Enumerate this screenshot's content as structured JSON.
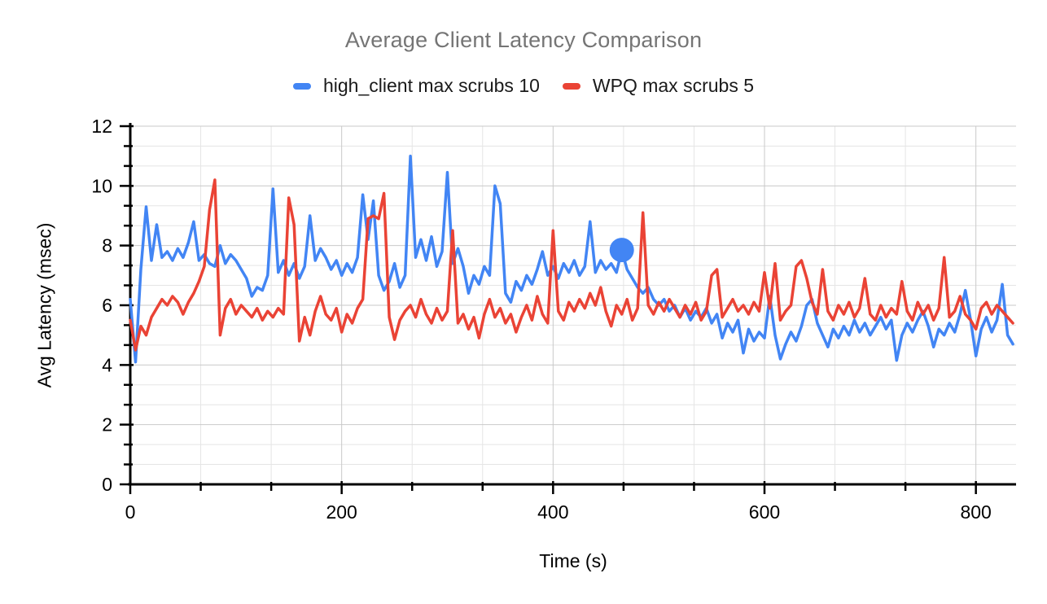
{
  "title": "Average Client Latency Comparison",
  "chart_data": {
    "type": "line",
    "title": "Average Client Latency Comparison",
    "xlabel": "Time (s)",
    "ylabel": "Avg Latency (msec)",
    "xlim": [
      0,
      838
    ],
    "ylim": [
      0,
      12
    ],
    "x_major_ticks": [
      0,
      200,
      400,
      600,
      800
    ],
    "y_major_ticks": [
      0,
      2,
      4,
      6,
      8,
      10,
      12
    ],
    "x_minor_step": 66.6667,
    "y_minor_step": 0.6667,
    "grid": true,
    "legend_position": "top",
    "axis_color": "#000000",
    "grid_major_color": "#c9c9c9",
    "grid_minor_color": "#e5e5e5",
    "title_color": "#757575",
    "legend_text_color": "#1a1a1a",
    "x_start": 0,
    "x_step": 5,
    "series": [
      {
        "id": "high-client",
        "name": "high_client max scrubs 10",
        "color": "#4285F4",
        "values": [
          6.2,
          4.1,
          7.2,
          9.3,
          7.5,
          8.7,
          7.6,
          7.8,
          7.5,
          7.9,
          7.6,
          8.1,
          8.8,
          7.5,
          7.7,
          7.4,
          7.3,
          8.0,
          7.4,
          7.7,
          7.5,
          7.2,
          6.9,
          6.3,
          6.6,
          6.5,
          7.0,
          9.9,
          7.1,
          7.5,
          7.0,
          7.4,
          6.9,
          7.3,
          9.0,
          7.5,
          7.9,
          7.6,
          7.2,
          7.5,
          7.0,
          7.4,
          7.1,
          7.6,
          9.7,
          8.2,
          9.5,
          7.0,
          6.5,
          6.8,
          7.4,
          6.6,
          7.0,
          11.0,
          7.6,
          8.2,
          7.5,
          8.3,
          7.3,
          7.8,
          10.45,
          7.4,
          7.9,
          7.3,
          6.4,
          7.0,
          6.7,
          7.3,
          7.0,
          10.0,
          9.4,
          6.4,
          6.1,
          6.8,
          6.5,
          7.0,
          6.7,
          7.2,
          7.8,
          7.0,
          7.3,
          6.9,
          7.4,
          7.1,
          7.5,
          7.0,
          7.3,
          8.8,
          7.1,
          7.5,
          7.2,
          7.4,
          7.1,
          7.85,
          7.2,
          6.9,
          6.6,
          6.4,
          6.6,
          6.2,
          6.0,
          6.2,
          5.8,
          6.0,
          5.6,
          5.9,
          5.5,
          5.8,
          5.6,
          5.9,
          5.4,
          5.7,
          4.9,
          5.4,
          5.1,
          5.5,
          4.4,
          5.2,
          4.8,
          5.1,
          4.9,
          6.3,
          5.0,
          4.2,
          4.7,
          5.1,
          4.8,
          5.3,
          6.0,
          6.2,
          5.4,
          5.0,
          4.6,
          5.2,
          4.9,
          5.3,
          5.0,
          5.5,
          5.1,
          5.4,
          5.0,
          5.3,
          5.6,
          5.2,
          5.5,
          4.15,
          5.0,
          5.4,
          5.1,
          5.5,
          5.8,
          5.3,
          4.6,
          5.2,
          5.0,
          5.4,
          5.1,
          5.7,
          6.5,
          5.5,
          4.3,
          5.2,
          5.6,
          5.1,
          5.5,
          6.7,
          5.0,
          4.7
        ]
      },
      {
        "id": "wpq",
        "name": "WPQ max scrubs 5",
        "color": "#EA4335",
        "values": [
          5.5,
          4.5,
          5.3,
          5.0,
          5.6,
          5.9,
          6.2,
          6.0,
          6.3,
          6.1,
          5.7,
          6.1,
          6.4,
          6.8,
          7.3,
          9.2,
          10.2,
          5.0,
          5.9,
          6.2,
          5.7,
          6.0,
          5.8,
          5.6,
          5.9,
          5.5,
          5.8,
          5.6,
          5.9,
          5.7,
          9.6,
          8.7,
          4.8,
          5.6,
          5.0,
          5.8,
          6.3,
          5.7,
          5.5,
          5.9,
          5.1,
          5.7,
          5.4,
          5.9,
          6.2,
          8.9,
          9.0,
          8.9,
          9.75,
          5.6,
          4.85,
          5.5,
          5.8,
          6.0,
          5.6,
          6.2,
          5.7,
          5.4,
          5.9,
          5.5,
          5.8,
          8.5,
          5.4,
          5.7,
          5.2,
          5.6,
          4.9,
          5.7,
          6.2,
          5.6,
          5.9,
          5.4,
          5.7,
          5.1,
          5.6,
          6.0,
          5.5,
          6.3,
          5.7,
          5.4,
          8.5,
          5.8,
          5.5,
          6.1,
          5.8,
          6.2,
          5.9,
          6.4,
          6.0,
          6.6,
          5.8,
          5.3,
          6.0,
          5.7,
          6.2,
          5.5,
          5.9,
          9.1,
          6.0,
          5.7,
          6.1,
          5.8,
          6.2,
          5.9,
          5.6,
          6.0,
          5.7,
          6.1,
          5.5,
          5.8,
          7.0,
          7.2,
          5.6,
          5.9,
          6.2,
          5.8,
          6.0,
          5.7,
          6.1,
          5.8,
          7.1,
          5.9,
          7.4,
          5.5,
          5.8,
          6.0,
          7.3,
          7.5,
          6.9,
          6.1,
          5.7,
          7.2,
          5.8,
          5.5,
          6.0,
          5.7,
          6.1,
          5.6,
          5.9,
          6.9,
          5.7,
          5.5,
          6.0,
          5.6,
          5.9,
          5.7,
          6.8,
          5.8,
          5.5,
          6.1,
          5.7,
          6.0,
          5.5,
          5.9,
          7.6,
          5.6,
          5.8,
          6.3,
          5.7,
          5.5,
          5.2,
          5.9,
          6.1,
          5.7,
          6.0,
          5.8,
          5.6,
          5.4
        ]
      }
    ],
    "highlight_point": {
      "series": "high_client max scrubs 10",
      "x": 465,
      "y": 7.85
    }
  }
}
